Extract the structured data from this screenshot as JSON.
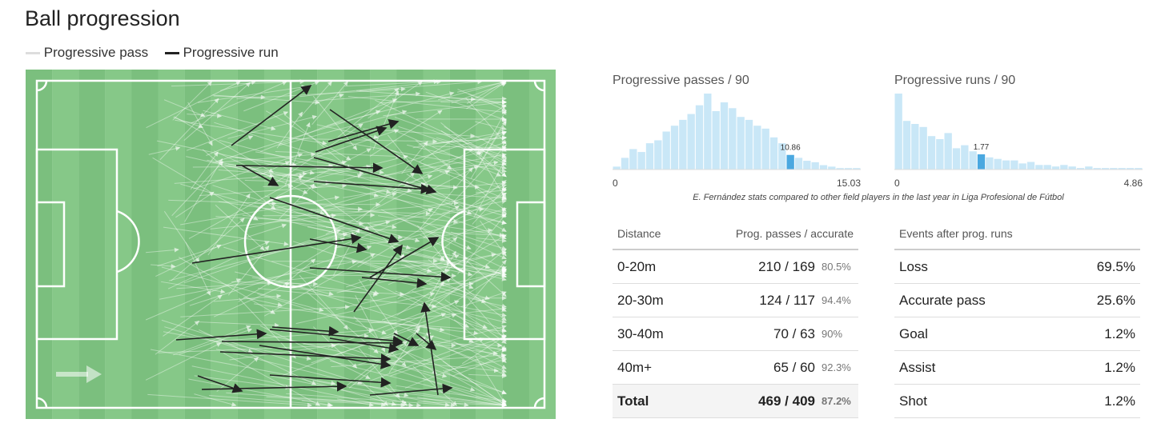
{
  "header": {
    "title": "Ball progression"
  },
  "legend": [
    "Progressive pass",
    "Progressive run"
  ],
  "chart_data": [
    {
      "type": "histogram",
      "title": "Progressive passes / 90",
      "color": "#c9e7f7",
      "highlight_color": "#4aa8e0",
      "bins": [
        0,
        0.501,
        1.002,
        1.503,
        2.004,
        2.505,
        3.006,
        3.507,
        4.008,
        4.509,
        5.01,
        5.511,
        6.012,
        6.513,
        7.014,
        7.515,
        8.016,
        8.517,
        9.018,
        9.519,
        10.02,
        10.521,
        11.022,
        11.523,
        12.024,
        12.525,
        13.026,
        13.527,
        14.028,
        14.529,
        15.03
      ],
      "counts": [
        2,
        8,
        14,
        12,
        18,
        20,
        26,
        30,
        34,
        38,
        44,
        52,
        40,
        46,
        42,
        36,
        34,
        30,
        28,
        22,
        18,
        10,
        8,
        6,
        5,
        3,
        2,
        1,
        1,
        1
      ],
      "player_value": 10.86,
      "xlim": [
        0,
        15.03
      ],
      "xticks": [
        0,
        15.03
      ]
    },
    {
      "type": "histogram",
      "title": "Progressive runs / 90",
      "color": "#c9e7f7",
      "highlight_color": "#4aa8e0",
      "bins": [
        0,
        0.162,
        0.324,
        0.486,
        0.648,
        0.81,
        0.972,
        1.134,
        1.296,
        1.458,
        1.62,
        1.782,
        1.944,
        2.106,
        2.268,
        2.43,
        2.592,
        2.754,
        2.916,
        3.078,
        3.24,
        3.402,
        3.564,
        3.726,
        3.888,
        4.05,
        4.212,
        4.374,
        4.536,
        4.698,
        4.86
      ],
      "counts": [
        50,
        32,
        30,
        28,
        22,
        20,
        24,
        14,
        16,
        12,
        10,
        8,
        7,
        6,
        6,
        4,
        5,
        3,
        3,
        2,
        3,
        2,
        1,
        2,
        1,
        1,
        1,
        1,
        1,
        1
      ],
      "player_value": 1.77,
      "xlim": [
        0,
        4.86
      ],
      "xticks": [
        0,
        4.86
      ]
    }
  ],
  "caption": "E. Fernández stats compared to other field players in the last year in Liga Profesional de Fútbol",
  "table_left": {
    "header": [
      "Distance",
      "Prog. passes / accurate"
    ],
    "rows": [
      [
        "0-20m",
        "210 / 169",
        "80.5%"
      ],
      [
        "20-30m",
        "124 / 117",
        "94.4%"
      ],
      [
        "30-40m",
        "70 / 63",
        "90%"
      ],
      [
        "40m+",
        "65 / 60",
        "92.3%"
      ],
      [
        "Total",
        "469 / 409",
        "87.2%"
      ]
    ]
  },
  "table_right": {
    "header": [
      "Events after prog. runs"
    ],
    "rows": [
      [
        "Loss",
        "69.5%"
      ],
      [
        "Accurate pass",
        "25.6%"
      ],
      [
        "Goal",
        "1.2%"
      ],
      [
        "Assist",
        "1.2%"
      ],
      [
        "Shot",
        "1.2%"
      ]
    ]
  }
}
